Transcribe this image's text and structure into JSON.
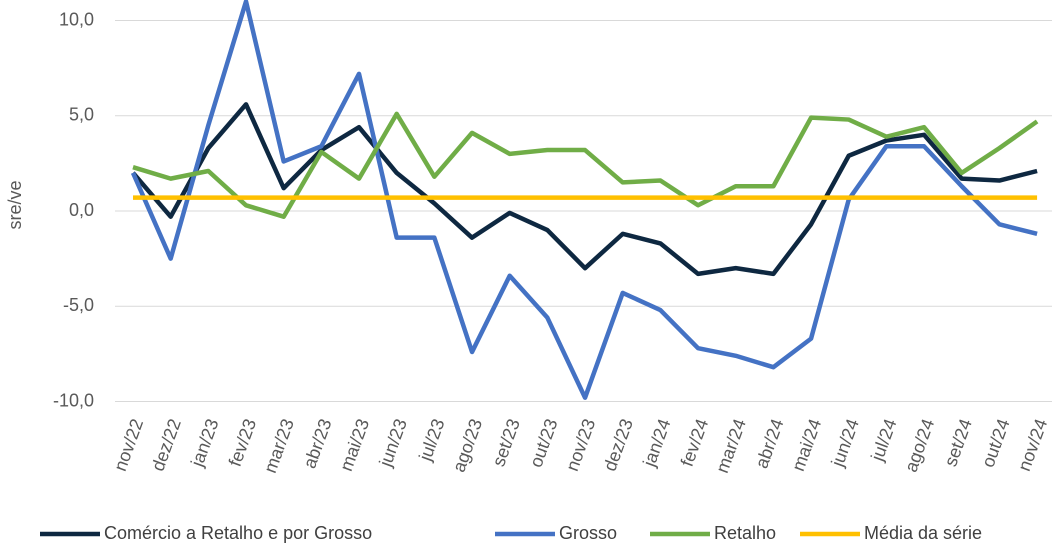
{
  "chart_data": {
    "type": "line",
    "y_label": "sre/ve",
    "categories": [
      "nov/22",
      "dez/22",
      "jan/23",
      "fev/23",
      "mar/23",
      "abr/23",
      "mai/23",
      "jun/23",
      "jul/23",
      "ago/23",
      "set/23",
      "out/23",
      "nov/23",
      "dez/23",
      "jan/24",
      "fev/24",
      "mar/24",
      "abr/24",
      "mai/24",
      "jun/24",
      "jul/24",
      "ago/24",
      "set/24",
      "out/24",
      "nov/24"
    ],
    "series": [
      {
        "name": "Comércio a Retalho e por Grosso",
        "color": "#0e2841",
        "values": [
          2.0,
          -0.3,
          3.3,
          5.6,
          1.2,
          3.2,
          4.4,
          2.0,
          0.4,
          -1.4,
          -0.1,
          -1.0,
          -3.0,
          -1.2,
          -1.7,
          -3.3,
          -3.0,
          -3.3,
          -0.7,
          2.9,
          3.7,
          4.0,
          1.7,
          1.6,
          2.1
        ]
      },
      {
        "name": "Grosso",
        "color": "#4472c4",
        "values": [
          2.0,
          -2.5,
          4.5,
          11.0,
          2.6,
          3.4,
          7.2,
          -1.4,
          -1.4,
          -7.4,
          -3.4,
          -5.6,
          -9.8,
          -4.3,
          -5.2,
          -7.2,
          -7.6,
          -8.2,
          -6.7,
          0.6,
          3.4,
          3.4,
          1.3,
          -0.7,
          -1.2
        ]
      },
      {
        "name": "Retalho",
        "color": "#70ad47",
        "values": [
          2.3,
          1.7,
          2.1,
          0.3,
          -0.3,
          3.1,
          1.7,
          5.1,
          1.8,
          4.1,
          3.0,
          3.2,
          3.2,
          1.5,
          1.6,
          0.3,
          1.3,
          1.3,
          4.9,
          4.8,
          3.9,
          4.4,
          2.0,
          3.3,
          4.7
        ]
      },
      {
        "name": "Média da série",
        "color": "#ffc000",
        "values": [
          0.7,
          0.7,
          0.7,
          0.7,
          0.7,
          0.7,
          0.7,
          0.7,
          0.7,
          0.7,
          0.7,
          0.7,
          0.7,
          0.7,
          0.7,
          0.7,
          0.7,
          0.7,
          0.7,
          0.7,
          0.7,
          0.7,
          0.7,
          0.7,
          0.7
        ]
      }
    ],
    "ylim": [
      -10,
      11
    ],
    "yticks": [
      {
        "value": -10,
        "label": "-10,0"
      },
      {
        "value": -5,
        "label": "-5,0"
      },
      {
        "value": 0,
        "label": "0,0"
      },
      {
        "value": 5,
        "label": "5,0"
      },
      {
        "value": 10,
        "label": "10,0"
      }
    ],
    "grid": true
  }
}
